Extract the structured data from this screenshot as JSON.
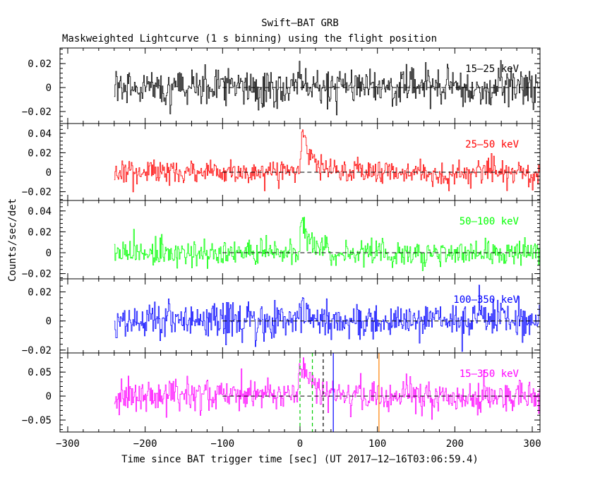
{
  "title": "Swift—BAT GRB",
  "subtitle": "Maskweighted Lightcurve (1 s binning) using the flight position",
  "chart_data": {
    "type": "line",
    "xlabel": "Time since BAT trigger time [sec] (UT 2017—12—16T03:06:59.4)",
    "ylabel": "Counts/sec/det",
    "xlim": [
      -310,
      310
    ],
    "x_ticks": [
      -300,
      -200,
      -100,
      0,
      100,
      200,
      300
    ],
    "x_tick_labels": [
      "−300",
      "−200",
      "−100",
      "0",
      "100",
      "200",
      "300"
    ],
    "data_range": [
      -240,
      310
    ],
    "bin_seconds": 1,
    "panels": [
      {
        "label": "15—25 keV",
        "color": "#000000",
        "ylim": [
          -0.03,
          0.033
        ],
        "y_ticks": [
          0.02,
          0,
          -0.02
        ],
        "y_tick_labels": [
          "0.02",
          "0",
          "−0.02"
        ],
        "noise_sigma": 0.008,
        "pulse": {
          "peak_time": 0,
          "amplitude": 0.006,
          "rise": 4,
          "decay": 20
        }
      },
      {
        "label": "25—50 keV",
        "color": "#ff0000",
        "ylim": [
          -0.029,
          0.05
        ],
        "y_ticks": [
          0.04,
          0.02,
          0,
          -0.02
        ],
        "y_tick_labels": [
          "0.04",
          "0.02",
          "0",
          "−0.02"
        ],
        "noise_sigma": 0.006,
        "pulse": {
          "peak_time": 3,
          "amplitude": 0.035,
          "rise": 3,
          "decay": 12
        }
      },
      {
        "label": "50—100 keV",
        "color": "#00ff00",
        "ylim": [
          -0.025,
          0.05
        ],
        "y_ticks": [
          0.04,
          0.02,
          0,
          -0.02
        ],
        "y_tick_labels": [
          "0.04",
          "0.02",
          "0",
          "−0.02"
        ],
        "noise_sigma": 0.006,
        "pulse": {
          "peak_time": 2,
          "amplitude": 0.035,
          "rise": 2,
          "decay": 10
        }
      },
      {
        "label": "100—350 keV",
        "color": "#0000ff",
        "ylim": [
          -0.022,
          0.029
        ],
        "y_ticks": [
          0.02,
          0,
          -0.02
        ],
        "y_tick_labels": [
          "0.02",
          "0",
          "−0.02"
        ],
        "noise_sigma": 0.0065,
        "pulse": {
          "peak_time": 1,
          "amplitude": 0.012,
          "rise": 2,
          "decay": 8
        }
      },
      {
        "label": "15—350 keV",
        "color": "#ff00ff",
        "ylim": [
          -0.075,
          0.09
        ],
        "y_ticks": [
          0.05,
          0,
          -0.05
        ],
        "y_tick_labels": [
          "0.05",
          "0",
          "−0.05"
        ],
        "noise_sigma": 0.017,
        "pulse": {
          "peak_time": 2,
          "amplitude": 0.07,
          "rise": 3,
          "decay": 15
        }
      }
    ],
    "markers": [
      {
        "x": 0,
        "color": "#00cc00",
        "style": "dashed"
      },
      {
        "x": 16,
        "color": "#00cc00",
        "style": "dashed"
      },
      {
        "x": 30,
        "color": "#000000",
        "style": "dashed"
      },
      {
        "x": 43,
        "color": "#0000ff",
        "style": "solid"
      },
      {
        "x": 102,
        "color": "#ff8000",
        "style": "solid"
      }
    ]
  }
}
